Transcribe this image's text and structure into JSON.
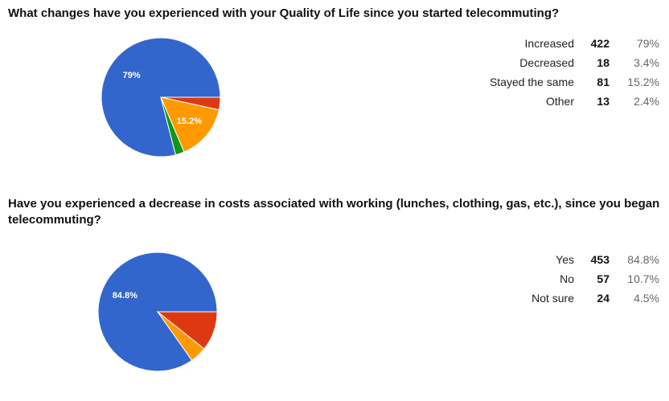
{
  "colors": {
    "blue": "#3366cc",
    "red": "#dc3912",
    "orange": "#ff9900",
    "green": "#109618"
  },
  "chart_data": [
    {
      "type": "pie",
      "title": "What changes have you experienced with your Quality of Life since you started telecommuting?",
      "categories": [
        "Increased",
        "Decreased",
        "Stayed the same",
        "Other"
      ],
      "values": [
        422,
        18,
        81,
        13
      ],
      "percents": [
        "79%",
        "3.4%",
        "15.2%",
        "2.4%"
      ],
      "fractions": [
        0.79,
        0.034,
        0.152,
        0.024
      ],
      "slice_labels": [
        "79%",
        "",
        "15.2%",
        ""
      ],
      "colors": [
        "#3366cc",
        "#dc3912",
        "#ff9900",
        "#109618"
      ],
      "legend_position": "right"
    },
    {
      "type": "pie",
      "title": "Have you experienced a decrease in costs associated with working (lunches, clothing, gas, etc.), since you began telecommuting?",
      "categories": [
        "Yes",
        "No",
        "Not sure"
      ],
      "values": [
        453,
        57,
        24
      ],
      "percents": [
        "84.8%",
        "10.7%",
        "4.5%"
      ],
      "fractions": [
        0.848,
        0.107,
        0.045
      ],
      "slice_labels": [
        "84.8%",
        "",
        ""
      ],
      "colors": [
        "#3366cc",
        "#dc3912",
        "#ff9900"
      ],
      "legend_position": "right"
    }
  ]
}
